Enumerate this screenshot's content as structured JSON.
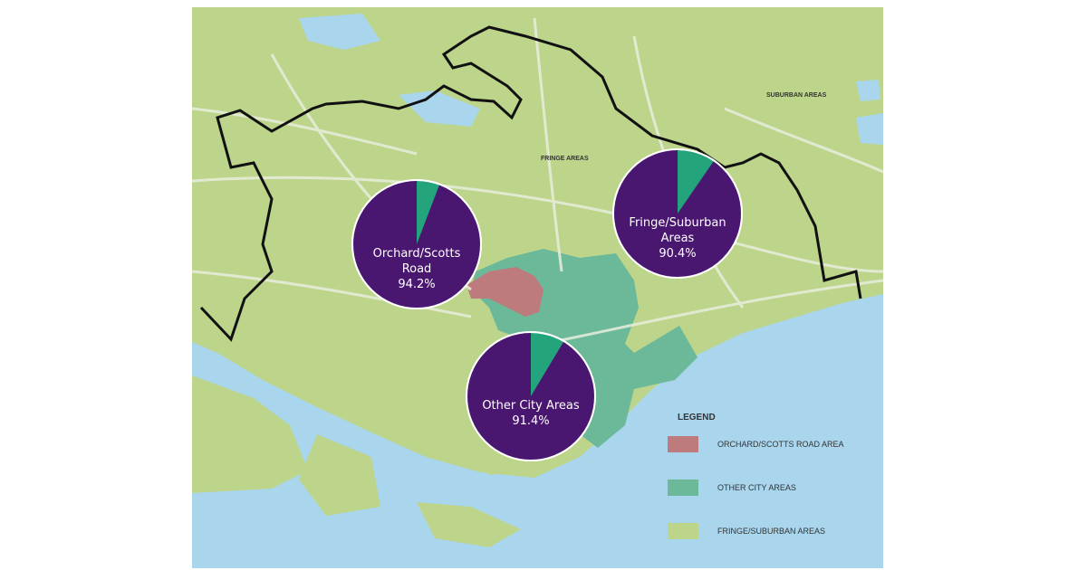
{
  "map": {
    "labels": [
      "SUBURBAN AREAS",
      "FRINGE AREAS"
    ],
    "pies": [
      {
        "name": "Orchard/Scotts Road",
        "value": 94.2,
        "value_label": "94.2%"
      },
      {
        "name": "Fringe/Suburban Areas",
        "value": 90.4,
        "value_label": "90.4%"
      },
      {
        "name": "Other City Areas",
        "value": 91.4,
        "value_label": "91.4%"
      }
    ],
    "pie_colors": [
      "#4a1770",
      "#23a47d"
    ],
    "legend": {
      "title": "LEGEND",
      "items": [
        {
          "label": "ORCHARD/SCOTTS ROAD AREA",
          "color": "#bd7b7d"
        },
        {
          "label": "OTHER CITY AREAS",
          "color": "#6cb99a"
        },
        {
          "label": "FRINGE/SUBURBAN AREAS",
          "color": "#bdd58b"
        }
      ]
    }
  }
}
